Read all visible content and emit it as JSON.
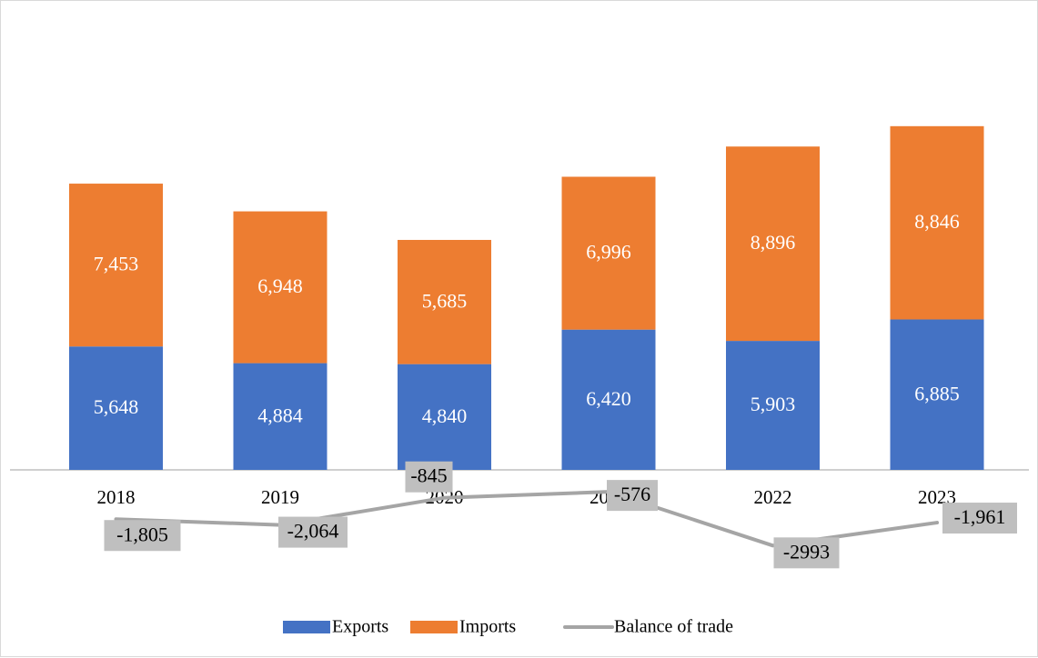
{
  "chart_data": {
    "type": "bar",
    "stacked": true,
    "categories": [
      "2018",
      "2019",
      "2020",
      "2021",
      "2022",
      "2023"
    ],
    "series": [
      {
        "name": "Exports",
        "type": "bar",
        "color": "#4472c4",
        "values": [
          5648,
          4884,
          4840,
          6420,
          5903,
          6885
        ],
        "labels": [
          "5,648",
          "4,884",
          "4,840",
          "6,420",
          "5,903",
          "6,885"
        ]
      },
      {
        "name": "Imports",
        "type": "bar",
        "color": "#ed7d31",
        "values": [
          7453,
          6948,
          5685,
          6996,
          8896,
          8846
        ],
        "labels": [
          "7,453",
          "6,948",
          "5,685",
          "6,996",
          "8,896",
          "8,846"
        ]
      },
      {
        "name": "Balance of trade",
        "type": "line",
        "color": "#a5a5a5",
        "values": [
          -1805,
          -2064,
          -845,
          -576,
          -2993,
          -1961
        ],
        "labels": [
          "-1,805",
          "-2,064",
          "-845",
          "-576",
          "-2993",
          "-1,961"
        ]
      }
    ],
    "legend": "bottom",
    "grid": false
  }
}
